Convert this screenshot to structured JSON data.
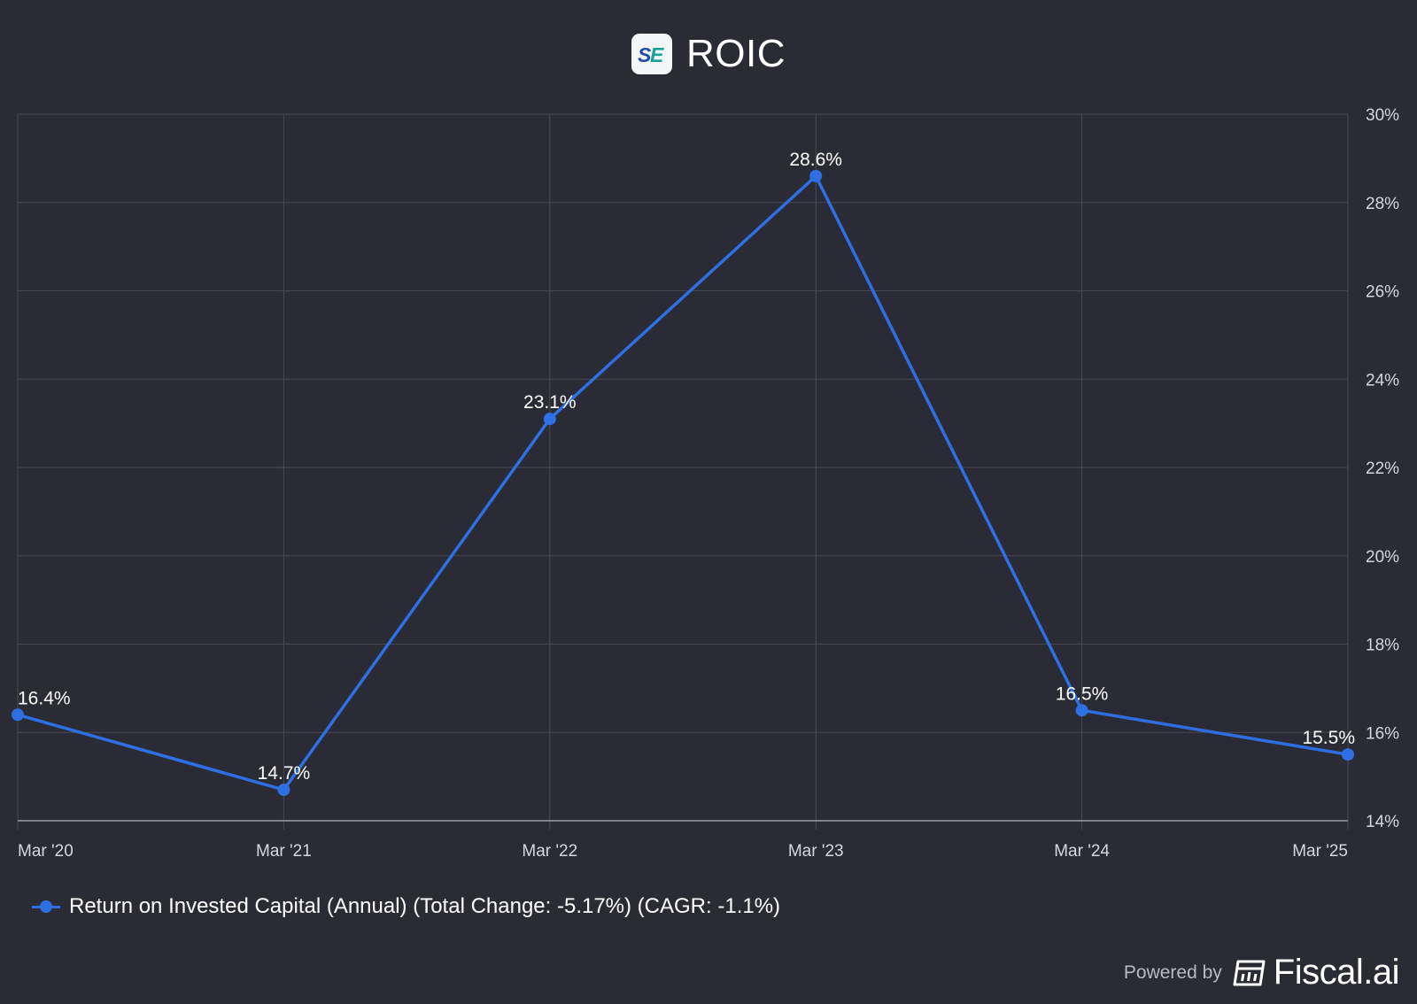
{
  "header": {
    "logo_text": "SE",
    "title": "ROIC"
  },
  "colors": {
    "background": "#2a2b34",
    "grid": "#474955",
    "axis": "#9a9ca6",
    "series": "#2e6fe3",
    "label": "#ffffff",
    "tick": "#d6d7dc"
  },
  "chart_data": {
    "type": "line",
    "title": "ROIC",
    "categories": [
      "Mar '20",
      "Mar '21",
      "Mar '22",
      "Mar '23",
      "Mar '24",
      "Mar '25"
    ],
    "series": [
      {
        "name": "Return on Invested Capital (Annual) (Total Change: -5.17%) (CAGR: -1.1%)",
        "values": [
          16.4,
          14.7,
          23.1,
          28.6,
          16.5,
          15.5
        ],
        "labels": [
          "16.4%",
          "14.7%",
          "23.1%",
          "28.6%",
          "16.5%",
          "15.5%"
        ]
      }
    ],
    "ylim": [
      14,
      30
    ],
    "y_ticks": [
      14,
      16,
      18,
      20,
      22,
      24,
      26,
      28,
      30
    ],
    "y_tick_labels": [
      "14%",
      "16%",
      "18%",
      "20%",
      "22%",
      "24%",
      "26%",
      "28%",
      "30%"
    ],
    "y_axis_side": "right",
    "grid": true,
    "legend_position": "bottom-left"
  },
  "legend": {
    "label": "Return on Invested Capital (Annual) (Total Change: -5.17%) (CAGR: -1.1%)"
  },
  "footer": {
    "powered_by": "Powered by",
    "brand": "Fiscal.ai"
  }
}
